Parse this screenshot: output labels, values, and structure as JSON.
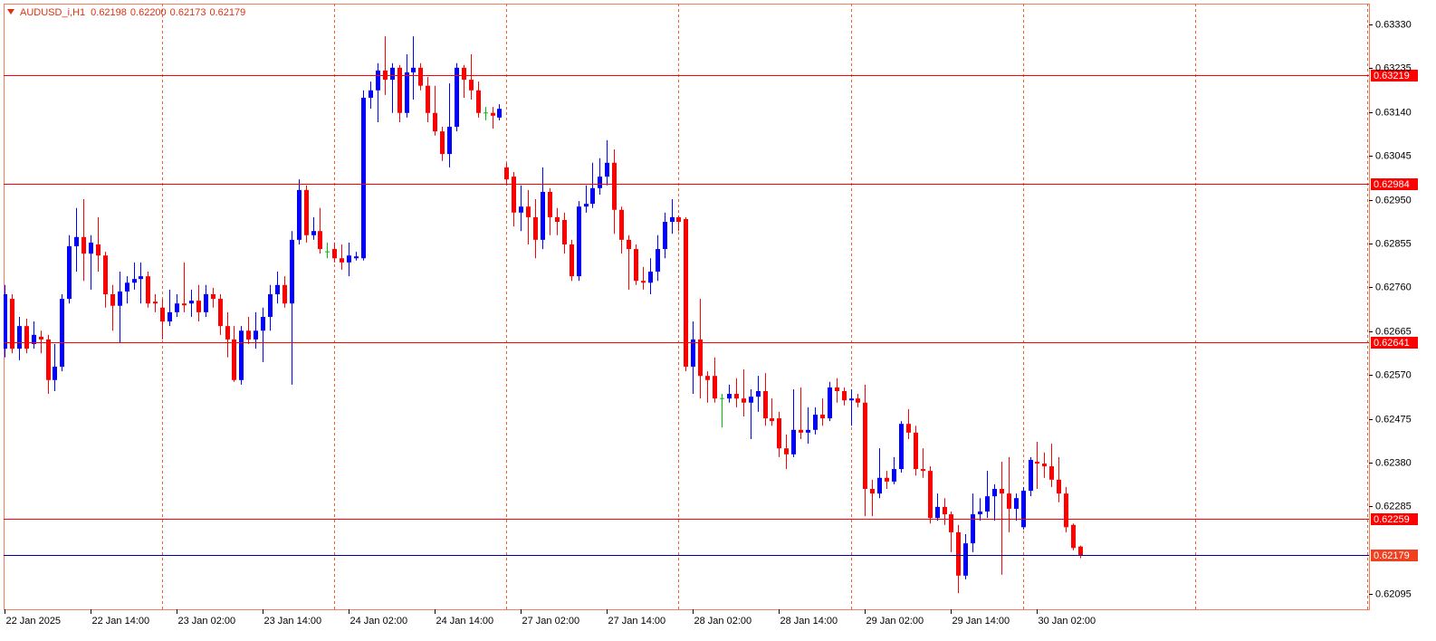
{
  "chart_data": {
    "type": "candlestick",
    "title": "AUDUSD_i,H1",
    "last_quote": [
      "0.62198",
      "0.62200",
      "0.62173",
      "0.62179"
    ],
    "bull_color": "#0000ff",
    "bear_color": "#ff0000",
    "doji_color": "#00c000",
    "ylim": [
      0.62062,
      0.63375
    ],
    "yticks": [
      {
        "value": 0.6333,
        "label": "0.63330"
      },
      0.63235,
      {
        "value": 0.6314,
        "label": "0.63140"
      },
      0.63045,
      {
        "value": 0.6295,
        "label": "0.62950"
      },
      0.62855,
      {
        "value": 0.6276,
        "label": "0.62760"
      },
      0.62665,
      {
        "value": 0.6257,
        "label": "0.62570"
      },
      0.62475,
      {
        "value": 0.6238,
        "label": "0.62380"
      },
      0.62285,
      0.62095
    ],
    "grid": false,
    "hlines": [
      {
        "value": 0.63219,
        "color": "#ff0000",
        "label_color": "#ff0000"
      },
      {
        "value": 0.62984,
        "color": "#ff0000",
        "label_color": "#ff0000"
      },
      {
        "value": 0.62641,
        "color": "#ff0000",
        "label_color": "#ff0000"
      },
      {
        "value": 0.62259,
        "color": "#ff0000",
        "label_color": "#ff0000"
      },
      {
        "value": 0.62179,
        "color": "#0000a0",
        "label_color": "#f04020"
      }
    ],
    "categories": [
      "22 Jan 2025",
      null,
      null,
      null,
      null,
      null,
      null,
      null,
      null,
      null,
      null,
      null,
      "22 Jan 14:00",
      null,
      null,
      null,
      null,
      null,
      null,
      null,
      null,
      null,
      null,
      null,
      "23 Jan 02:00",
      null,
      null,
      null,
      null,
      null,
      null,
      null,
      null,
      null,
      null,
      null,
      "23 Jan 14:00",
      null,
      null,
      null,
      null,
      null,
      null,
      null,
      null,
      null,
      null,
      null,
      "24 Jan 02:00",
      null,
      null,
      null,
      null,
      null,
      null,
      null,
      null,
      null,
      null,
      null,
      "24 Jan 14:00",
      null,
      null,
      null,
      null,
      null,
      null,
      null,
      null,
      null,
      null,
      null,
      "27 Jan 02:00",
      null,
      null,
      null,
      null,
      null,
      null,
      null,
      null,
      null,
      null,
      null,
      "27 Jan 14:00",
      null,
      null,
      null,
      null,
      null,
      null,
      null,
      null,
      null,
      null,
      null,
      "28 Jan 02:00",
      null,
      null,
      null,
      null,
      null,
      null,
      null,
      null,
      null,
      null,
      null,
      "28 Jan 14:00",
      null,
      null,
      null,
      null,
      null,
      null,
      null,
      null,
      null,
      null,
      null,
      "29 Jan 02:00",
      null,
      null,
      null,
      null,
      null,
      null,
      null,
      null,
      null,
      null,
      null,
      "29 Jan 14:00",
      null,
      null,
      null,
      null,
      null,
      null,
      null,
      null,
      null,
      null,
      null,
      "30 Jan 02:00",
      null,
      null,
      null,
      null,
      null,
      null
    ],
    "ohlc": [
      [
        0.62627,
        0.62765,
        0.62608,
        0.62745
      ],
      [
        0.62735,
        0.62745,
        0.62617,
        0.62627
      ],
      [
        0.62627,
        0.62696,
        0.62602,
        0.62676
      ],
      [
        0.62676,
        0.62692,
        0.62617,
        0.62627
      ],
      [
        0.62637,
        0.62686,
        0.62627,
        0.62657
      ],
      [
        0.62653,
        0.62666,
        0.62617,
        0.62647
      ],
      [
        0.62647,
        0.62657,
        0.62529,
        0.62559
      ],
      [
        0.62559,
        0.62637,
        0.62535,
        0.62588
      ],
      [
        0.62588,
        0.62745,
        0.62578,
        0.62735
      ],
      [
        0.62735,
        0.62873,
        0.62725,
        0.62849
      ],
      [
        0.62849,
        0.62932,
        0.62794,
        0.62869
      ],
      [
        0.62869,
        0.62951,
        0.62774,
        0.62833
      ],
      [
        0.62833,
        0.62873,
        0.62755,
        0.62857
      ],
      [
        0.62853,
        0.62912,
        0.62794,
        0.62829
      ],
      [
        0.62829,
        0.62837,
        0.62716,
        0.62745
      ],
      [
        0.62745,
        0.62765,
        0.62666,
        0.6272
      ],
      [
        0.6272,
        0.62794,
        0.62641,
        0.62751
      ],
      [
        0.62751,
        0.62784,
        0.62725,
        0.6277
      ],
      [
        0.6277,
        0.62814,
        0.62755,
        0.62778
      ],
      [
        0.62778,
        0.62814,
        0.62725,
        0.62784
      ],
      [
        0.62784,
        0.62794,
        0.62716,
        0.62725
      ],
      [
        0.62729,
        0.62745,
        0.62706,
        0.62725
      ],
      [
        0.62716,
        0.62735,
        0.62647,
        0.62686
      ],
      [
        0.62686,
        0.62755,
        0.62676,
        0.62706
      ],
      [
        0.62706,
        0.62745,
        0.62696,
        0.62725
      ],
      [
        0.62725,
        0.62814,
        0.62706,
        0.62721
      ],
      [
        0.62725,
        0.62755,
        0.62696,
        0.62731
      ],
      [
        0.62731,
        0.62765,
        0.62686,
        0.62706
      ],
      [
        0.62706,
        0.62765,
        0.62696,
        0.62745
      ],
      [
        0.62745,
        0.62759,
        0.62716,
        0.62735
      ],
      [
        0.62735,
        0.62745,
        0.62657,
        0.62676
      ],
      [
        0.62676,
        0.62706,
        0.62608,
        0.62647
      ],
      [
        0.62647,
        0.62676,
        0.62555,
        0.62559
      ],
      [
        0.62559,
        0.62676,
        0.62549,
        0.62666
      ],
      [
        0.62666,
        0.62696,
        0.62637,
        0.62647
      ],
      [
        0.62647,
        0.62706,
        0.62627,
        0.62666
      ],
      [
        0.62666,
        0.62716,
        0.62598,
        0.62696
      ],
      [
        0.62696,
        0.62765,
        0.62666,
        0.62745
      ],
      [
        0.62745,
        0.62794,
        0.62725,
        0.62765
      ],
      [
        0.62765,
        0.62784,
        0.62716,
        0.62725
      ],
      [
        0.62725,
        0.62882,
        0.62549,
        0.62863
      ],
      [
        0.62863,
        0.62994,
        0.62853,
        0.62971
      ],
      [
        0.62971,
        0.62981,
        0.62857,
        0.62873
      ],
      [
        0.62873,
        0.62912,
        0.62863,
        0.62882
      ],
      [
        0.62882,
        0.62932,
        0.62833,
        0.62843
      ],
      [
        0.62837,
        0.62857,
        0.62823,
        0.62837
      ],
      [
        0.62843,
        0.62857,
        0.62814,
        0.62823
      ],
      [
        0.62823,
        0.62853,
        0.62798,
        0.62814
      ],
      [
        0.62814,
        0.62857,
        0.62784,
        0.62829
      ],
      [
        0.62823,
        0.62837,
        0.62818,
        0.62827
      ],
      [
        0.62823,
        0.63187,
        0.62818,
        0.63171
      ],
      [
        0.63171,
        0.63206,
        0.63147,
        0.63187
      ],
      [
        0.63187,
        0.63246,
        0.63118,
        0.6323
      ],
      [
        0.6323,
        0.63304,
        0.63177,
        0.6321
      ],
      [
        0.6321,
        0.63246,
        0.63138,
        0.63236
      ],
      [
        0.63236,
        0.63242,
        0.63118,
        0.63138
      ],
      [
        0.63138,
        0.63265,
        0.63128,
        0.63226
      ],
      [
        0.63226,
        0.63304,
        0.63167,
        0.63236
      ],
      [
        0.63236,
        0.63246,
        0.63187,
        0.63197
      ],
      [
        0.63197,
        0.63216,
        0.63118,
        0.63138
      ],
      [
        0.63138,
        0.63197,
        0.63089,
        0.63098
      ],
      [
        0.63098,
        0.63108,
        0.63034,
        0.63049
      ],
      [
        0.63049,
        0.63202,
        0.6302,
        0.63108
      ],
      [
        0.63108,
        0.63246,
        0.63098,
        0.63236
      ],
      [
        0.63236,
        0.63242,
        0.63171,
        0.6321
      ],
      [
        0.6321,
        0.63265,
        0.63167,
        0.63187
      ],
      [
        0.63187,
        0.63206,
        0.63128,
        0.63138
      ],
      [
        0.63138,
        0.63151,
        0.63122,
        0.63138
      ],
      [
        0.63138,
        0.63151,
        0.63104,
        0.63132
      ],
      [
        0.63128,
        0.63157,
        0.63122,
        0.63147
      ],
      [
        0.6302,
        0.6303,
        0.62981,
        0.62994
      ],
      [
        0.63,
        0.6301,
        0.62892,
        0.62922
      ],
      [
        0.62922,
        0.62981,
        0.62882,
        0.62935
      ],
      [
        0.62935,
        0.62971,
        0.62853,
        0.62912
      ],
      [
        0.62912,
        0.62951,
        0.62823,
        0.62863
      ],
      [
        0.62863,
        0.6302,
        0.62843,
        0.62967
      ],
      [
        0.62967,
        0.62975,
        0.62873,
        0.62912
      ],
      [
        0.62912,
        0.62932,
        0.62873,
        0.62902
      ],
      [
        0.62906,
        0.62922,
        0.62833,
        0.62853
      ],
      [
        0.62853,
        0.62863,
        0.62774,
        0.62784
      ],
      [
        0.62784,
        0.62947,
        0.62774,
        0.62935
      ],
      [
        0.62935,
        0.62981,
        0.62922,
        0.62941
      ],
      [
        0.62941,
        0.6303,
        0.62932,
        0.62975
      ],
      [
        0.62975,
        0.6304,
        0.62961,
        0.63
      ],
      [
        0.63,
        0.63079,
        0.62981,
        0.6303
      ],
      [
        0.6303,
        0.63059,
        0.62876,
        0.62928
      ],
      [
        0.62928,
        0.62935,
        0.62833,
        0.62863
      ],
      [
        0.62863,
        0.62873,
        0.62755,
        0.62843
      ],
      [
        0.62843,
        0.62853,
        0.62765,
        0.62774
      ],
      [
        0.62774,
        0.62804,
        0.62755,
        0.6277
      ],
      [
        0.6277,
        0.62823,
        0.62745,
        0.62794
      ],
      [
        0.62794,
        0.62873,
        0.62774,
        0.62843
      ],
      [
        0.62843,
        0.62922,
        0.62823,
        0.62902
      ],
      [
        0.62902,
        0.62951,
        0.62876,
        0.62912
      ],
      [
        0.62912,
        0.62916,
        0.62882,
        0.62902
      ],
      [
        0.62908,
        0.62912,
        0.62578,
        0.62588
      ],
      [
        0.62588,
        0.62686,
        0.62529,
        0.62647
      ],
      [
        0.62647,
        0.62735,
        0.62519,
        0.62568
      ],
      [
        0.62568,
        0.62578,
        0.6251,
        0.62559
      ],
      [
        0.62568,
        0.62608,
        0.6251,
        0.62519
      ],
      [
        0.62519,
        0.62529,
        0.62456,
        0.62519
      ],
      [
        0.62519,
        0.62549,
        0.6251,
        0.62529
      ],
      [
        0.62529,
        0.62563,
        0.625,
        0.62519
      ],
      [
        0.62519,
        0.62582,
        0.6248,
        0.6251
      ],
      [
        0.6251,
        0.62539,
        0.62431,
        0.62523
      ],
      [
        0.62523,
        0.62568,
        0.6249,
        0.62535
      ],
      [
        0.62535,
        0.62574,
        0.6246,
        0.62476
      ],
      [
        0.62476,
        0.62519,
        0.6246,
        0.6247
      ],
      [
        0.62476,
        0.6249,
        0.62392,
        0.62411
      ],
      [
        0.62411,
        0.62441,
        0.62366,
        0.62398
      ],
      [
        0.62398,
        0.62539,
        0.62392,
        0.62451
      ],
      [
        0.62451,
        0.62543,
        0.62431,
        0.62445
      ],
      [
        0.62445,
        0.625,
        0.62421,
        0.62451
      ],
      [
        0.62451,
        0.625,
        0.62441,
        0.62484
      ],
      [
        0.62484,
        0.62519,
        0.6246,
        0.62476
      ],
      [
        0.62476,
        0.62555,
        0.6247,
        0.62543
      ],
      [
        0.62543,
        0.62563,
        0.6251,
        0.62535
      ],
      [
        0.62535,
        0.62543,
        0.62504,
        0.62515
      ],
      [
        0.62515,
        0.62539,
        0.6246,
        0.62519
      ],
      [
        0.62519,
        0.62529,
        0.625,
        0.6251
      ],
      [
        0.6251,
        0.62549,
        0.62264,
        0.62323
      ],
      [
        0.62323,
        0.62343,
        0.62264,
        0.62313
      ],
      [
        0.62313,
        0.62411,
        0.62303,
        0.62347
      ],
      [
        0.62347,
        0.62362,
        0.62323,
        0.62339
      ],
      [
        0.62339,
        0.62392,
        0.62333,
        0.62366
      ],
      [
        0.62366,
        0.6247,
        0.62358,
        0.62464
      ],
      [
        0.62464,
        0.62496,
        0.62431,
        0.62445
      ],
      [
        0.62445,
        0.6246,
        0.62352,
        0.62366
      ],
      [
        0.62366,
        0.62411,
        0.62347,
        0.62362
      ],
      [
        0.62362,
        0.62372,
        0.62248,
        0.6226
      ],
      [
        0.6226,
        0.62313,
        0.62254,
        0.62284
      ],
      [
        0.62284,
        0.62303,
        0.62245,
        0.62268
      ],
      [
        0.62268,
        0.62274,
        0.62186,
        0.62229
      ],
      [
        0.62229,
        0.62245,
        0.62097,
        0.62135
      ],
      [
        0.62135,
        0.62225,
        0.62127,
        0.62205
      ],
      [
        0.62205,
        0.62313,
        0.62186,
        0.62268
      ],
      [
        0.62268,
        0.62303,
        0.62254,
        0.62274
      ],
      [
        0.62274,
        0.62362,
        0.6226,
        0.62307
      ],
      [
        0.62307,
        0.62333,
        0.62254,
        0.62323
      ],
      [
        0.62323,
        0.62382,
        0.62137,
        0.62313
      ],
      [
        0.62313,
        0.62392,
        0.62229,
        0.6228
      ],
      [
        0.6228,
        0.62313,
        0.62254,
        0.62303
      ],
      [
        0.6224,
        0.62327,
        0.62235,
        0.62319
      ],
      [
        0.62319,
        0.62392,
        0.62307,
        0.62386
      ],
      [
        0.62382,
        0.62425,
        0.62323,
        0.62378
      ],
      [
        0.62378,
        0.62402,
        0.62347,
        0.62372
      ],
      [
        0.62372,
        0.62421,
        0.62327,
        0.62343
      ],
      [
        0.62343,
        0.62392,
        0.62294,
        0.62313
      ],
      [
        0.62313,
        0.62327,
        0.62229,
        0.6224
      ],
      [
        0.62245,
        0.62248,
        0.6219,
        0.62195
      ],
      [
        0.62198,
        0.622,
        0.62173,
        0.62179
      ]
    ]
  }
}
